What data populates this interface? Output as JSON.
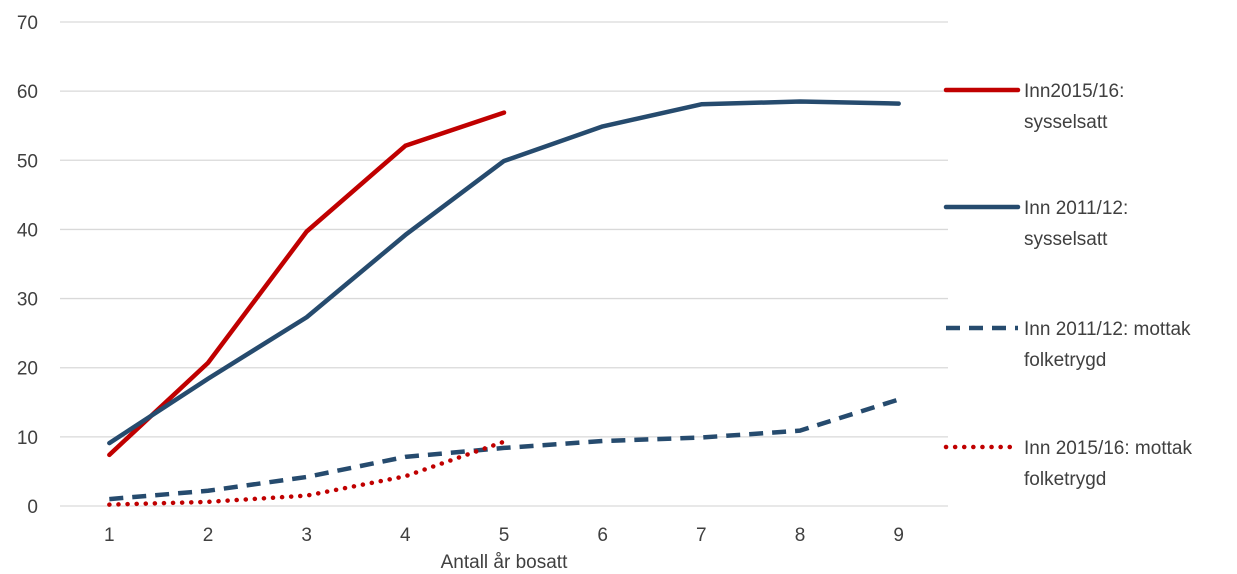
{
  "chart_data": {
    "type": "line",
    "xlabel": "Antall år bosatt",
    "ylabel": "",
    "x": [
      1,
      2,
      3,
      4,
      5,
      6,
      7,
      8,
      9
    ],
    "xlim": [
      0.5,
      9.5
    ],
    "ylim": [
      0,
      70
    ],
    "yticks": [
      0,
      10,
      20,
      30,
      40,
      50,
      60,
      70
    ],
    "grid": true,
    "legend_position": "right",
    "series": [
      {
        "name": "Inn2015/16: sysselsatt",
        "color": "#C00000",
        "dash": "solid",
        "x": [
          1,
          2,
          3,
          4,
          5
        ],
        "values": [
          7.4,
          20.7,
          39.7,
          52.1,
          56.9
        ]
      },
      {
        "name": "Inn 2011/12: sysselsatt",
        "color": "#264B6E",
        "dash": "solid",
        "x": [
          1,
          2,
          3,
          4,
          5,
          6,
          7,
          8,
          9
        ],
        "values": [
          9.1,
          18.4,
          27.3,
          39.2,
          49.9,
          54.9,
          58.1,
          58.5,
          58.2
        ]
      },
      {
        "name": "Inn 2011/12: mottak folketrygd",
        "color": "#264B6E",
        "dash": "dashed",
        "x": [
          1,
          2,
          3,
          4,
          5,
          6,
          7,
          8,
          9
        ],
        "values": [
          1.0,
          2.2,
          4.2,
          7.1,
          8.4,
          9.4,
          9.9,
          10.9,
          15.4
        ]
      },
      {
        "name": "Inn 2015/16: mottak folketrygd",
        "color": "#C00000",
        "dash": "dotted",
        "x": [
          1,
          2,
          3,
          4,
          5
        ],
        "values": [
          0.2,
          0.6,
          1.5,
          4.3,
          9.3
        ]
      }
    ]
  },
  "legend": [
    {
      "line1": "Inn2015/16:",
      "line2": "sysselsatt"
    },
    {
      "line1": "Inn 2011/12:",
      "line2": "sysselsatt"
    },
    {
      "line1": "Inn 2011/12: mottak",
      "line2": "folketrygd"
    },
    {
      "line1": "Inn 2015/16: mottak",
      "line2": "folketrygd"
    }
  ]
}
